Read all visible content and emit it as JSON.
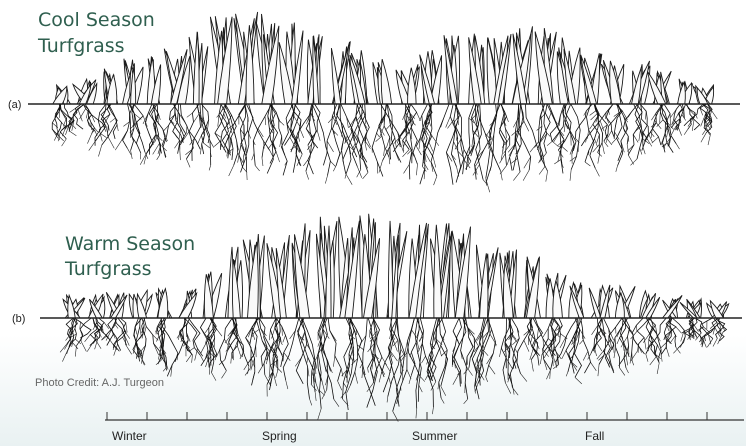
{
  "diagram": {
    "a": {
      "title_line1": "Cool Season",
      "title_line2": "Turfgrass",
      "label": "(a)"
    },
    "b": {
      "title_line1": "Warm Season",
      "title_line2": "Turfgrass",
      "label": "(b)"
    },
    "credit": "Photo Credit: A.J. Turgeon",
    "seasons": [
      "Winter",
      "Spring",
      "Summer",
      "Fall"
    ]
  }
}
